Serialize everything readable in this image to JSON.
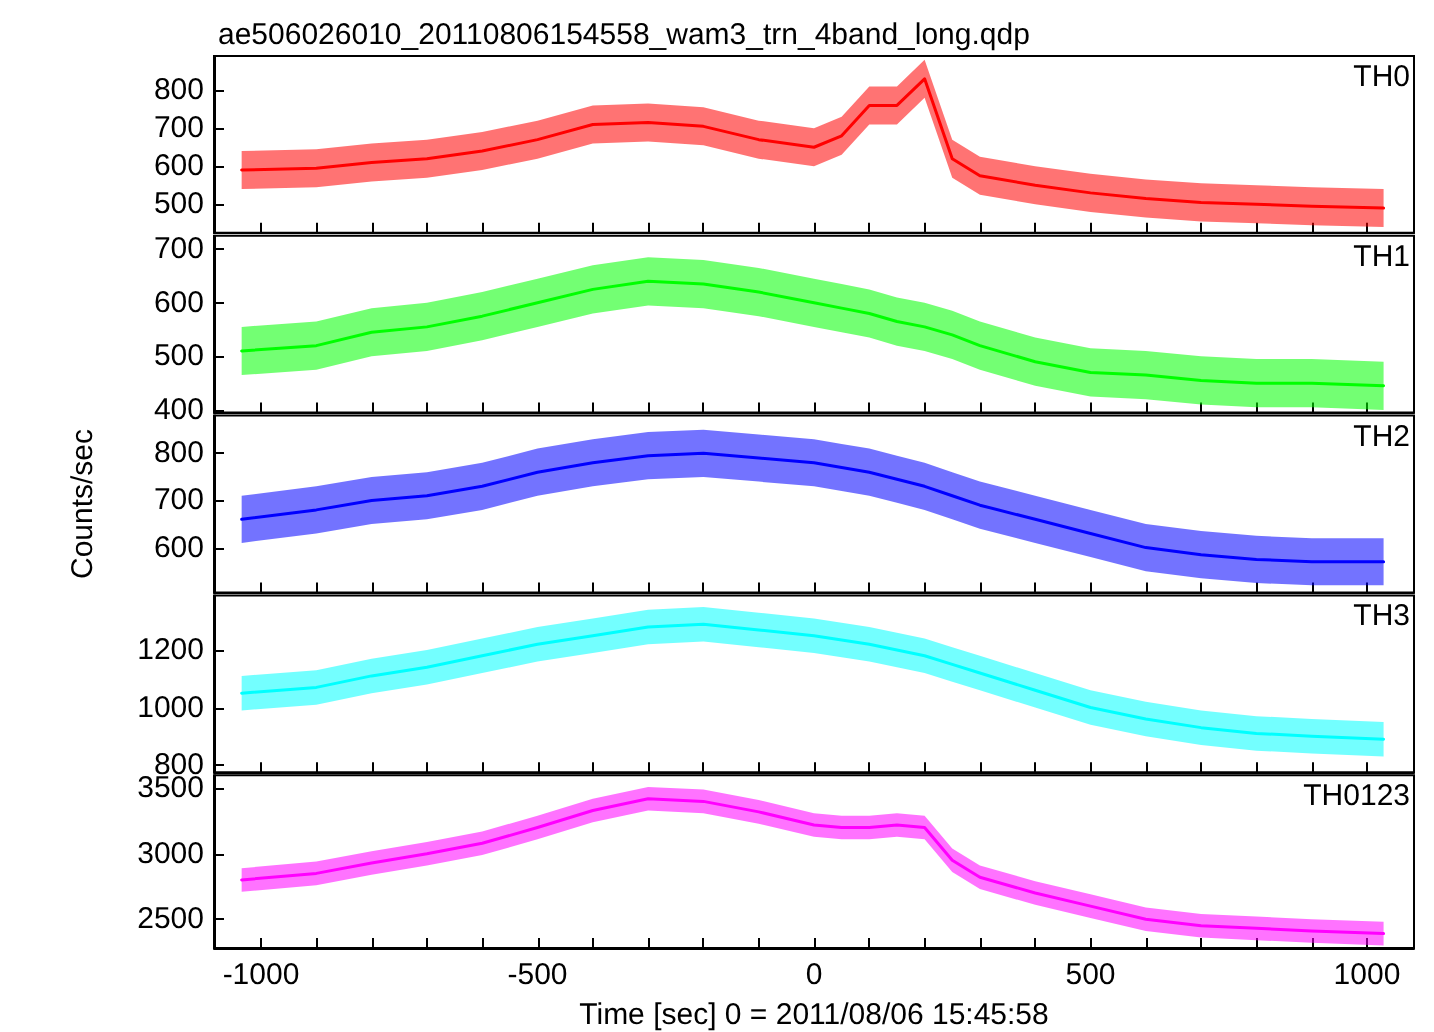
{
  "chart_data": [
    {
      "type": "line",
      "title": "ae506026010_20110806154558_wam3_trn_4band_long.qdp",
      "annotations": [
        "TH0"
      ],
      "tick_labels": "y",
      "x": [
        -1035,
        -900,
        -800,
        -700,
        -600,
        -500,
        -400,
        -300,
        -200,
        -100,
        0,
        50,
        100,
        150,
        200,
        250,
        300,
        400,
        500,
        600,
        700,
        800,
        900,
        1030
      ],
      "series": [
        {
          "color": "#ff0000",
          "values": [
            590,
            595,
            610,
            620,
            640,
            670,
            710,
            715,
            705,
            670,
            650,
            680,
            760,
            760,
            830,
            620,
            575,
            550,
            530,
            515,
            505,
            500,
            495,
            490
          ],
          "lower": [
            540,
            545,
            560,
            570,
            590,
            620,
            660,
            665,
            655,
            620,
            600,
            630,
            710,
            710,
            780,
            570,
            525,
            500,
            480,
            465,
            455,
            450,
            445,
            440
          ],
          "upper": [
            640,
            645,
            660,
            670,
            690,
            720,
            760,
            765,
            755,
            720,
            700,
            730,
            810,
            810,
            880,
            670,
            625,
            600,
            580,
            565,
            555,
            550,
            545,
            540
          ]
        }
      ],
      "xlim": [
        -1085,
        1085
      ],
      "ylim": [
        425,
        890
      ],
      "yticks": [
        500,
        600,
        700,
        800
      ],
      "xticks": [
        {
          "value": -1000,
          "label": null
        },
        {
          "value": -900,
          "label": null
        },
        {
          "value": -800,
          "label": null
        },
        {
          "value": -700,
          "label": null
        },
        {
          "value": -600,
          "label": null
        },
        {
          "value": -500,
          "label": null
        },
        {
          "value": -400,
          "label": null
        },
        {
          "value": -300,
          "label": null
        },
        {
          "value": -200,
          "label": null
        },
        {
          "value": -100,
          "label": null
        },
        {
          "value": 0,
          "label": null
        },
        {
          "value": 100,
          "label": null
        },
        {
          "value": 200,
          "label": null
        },
        {
          "value": 300,
          "label": null
        },
        {
          "value": 400,
          "label": null
        },
        {
          "value": 500,
          "label": null
        },
        {
          "value": 600,
          "label": null
        },
        {
          "value": 700,
          "label": null
        },
        {
          "value": 800,
          "label": null
        },
        {
          "value": 900,
          "label": null
        },
        {
          "value": 1000,
          "label": null
        }
      ]
    },
    {
      "type": "line",
      "annotations": [
        "TH1"
      ],
      "tick_labels": "y",
      "x": [
        -1035,
        -900,
        -800,
        -700,
        -600,
        -500,
        -400,
        -300,
        -200,
        -100,
        0,
        50,
        100,
        150,
        200,
        250,
        300,
        400,
        500,
        600,
        700,
        800,
        900,
        1030
      ],
      "series": [
        {
          "color": "#00ff00",
          "values": [
            510,
            520,
            545,
            555,
            575,
            600,
            625,
            640,
            635,
            620,
            600,
            590,
            580,
            565,
            555,
            540,
            520,
            490,
            470,
            465,
            455,
            450,
            450,
            445
          ],
          "lower": [
            465,
            475,
            500,
            510,
            530,
            555,
            580,
            595,
            590,
            575,
            555,
            545,
            535,
            520,
            510,
            495,
            475,
            445,
            425,
            420,
            410,
            405,
            405,
            400
          ],
          "upper": [
            555,
            565,
            590,
            600,
            620,
            645,
            670,
            685,
            680,
            665,
            645,
            635,
            625,
            610,
            600,
            585,
            565,
            535,
            515,
            510,
            500,
            495,
            495,
            490
          ]
        }
      ],
      "xlim": [
        -1085,
        1085
      ],
      "ylim": [
        395,
        725
      ],
      "yticks": [
        400,
        500,
        600,
        700
      ],
      "xticks": [
        {
          "value": -1000,
          "label": null
        },
        {
          "value": -900,
          "label": null
        },
        {
          "value": -800,
          "label": null
        },
        {
          "value": -700,
          "label": null
        },
        {
          "value": -600,
          "label": null
        },
        {
          "value": -500,
          "label": null
        },
        {
          "value": -400,
          "label": null
        },
        {
          "value": -300,
          "label": null
        },
        {
          "value": -200,
          "label": null
        },
        {
          "value": -100,
          "label": null
        },
        {
          "value": 0,
          "label": null
        },
        {
          "value": 100,
          "label": null
        },
        {
          "value": 200,
          "label": null
        },
        {
          "value": 300,
          "label": null
        },
        {
          "value": 400,
          "label": null
        },
        {
          "value": 500,
          "label": null
        },
        {
          "value": 600,
          "label": null
        },
        {
          "value": 700,
          "label": null
        },
        {
          "value": 800,
          "label": null
        },
        {
          "value": 900,
          "label": null
        },
        {
          "value": 1000,
          "label": null
        }
      ]
    },
    {
      "type": "line",
      "annotations": [
        "TH2"
      ],
      "tick_labels": "y",
      "ylabel": "Counts/sec",
      "x": [
        -1035,
        -900,
        -800,
        -700,
        -600,
        -500,
        -400,
        -300,
        -200,
        -100,
        0,
        50,
        100,
        150,
        200,
        250,
        300,
        400,
        500,
        600,
        700,
        800,
        900,
        1030
      ],
      "series": [
        {
          "color": "#0000ff",
          "values": [
            660,
            680,
            700,
            710,
            730,
            760,
            780,
            795,
            800,
            790,
            780,
            770,
            760,
            745,
            730,
            710,
            690,
            660,
            630,
            600,
            585,
            575,
            570,
            570
          ],
          "lower": [
            610,
            630,
            650,
            660,
            680,
            710,
            730,
            745,
            750,
            740,
            730,
            720,
            710,
            695,
            680,
            660,
            640,
            610,
            580,
            550,
            535,
            525,
            520,
            520
          ],
          "upper": [
            710,
            730,
            750,
            760,
            780,
            810,
            830,
            845,
            850,
            840,
            830,
            820,
            810,
            795,
            780,
            760,
            740,
            710,
            680,
            650,
            635,
            625,
            620,
            620
          ]
        }
      ],
      "xlim": [
        -1085,
        1085
      ],
      "ylim": [
        505,
        880
      ],
      "yticks": [
        600,
        700,
        800
      ],
      "xticks": [
        {
          "value": -1000,
          "label": null
        },
        {
          "value": -900,
          "label": null
        },
        {
          "value": -800,
          "label": null
        },
        {
          "value": -700,
          "label": null
        },
        {
          "value": -600,
          "label": null
        },
        {
          "value": -500,
          "label": null
        },
        {
          "value": -400,
          "label": null
        },
        {
          "value": -300,
          "label": null
        },
        {
          "value": -200,
          "label": null
        },
        {
          "value": -100,
          "label": null
        },
        {
          "value": 0,
          "label": null
        },
        {
          "value": 100,
          "label": null
        },
        {
          "value": 200,
          "label": null
        },
        {
          "value": 300,
          "label": null
        },
        {
          "value": 400,
          "label": null
        },
        {
          "value": 500,
          "label": null
        },
        {
          "value": 600,
          "label": null
        },
        {
          "value": 700,
          "label": null
        },
        {
          "value": 800,
          "label": null
        },
        {
          "value": 900,
          "label": null
        },
        {
          "value": 1000,
          "label": null
        }
      ]
    },
    {
      "type": "line",
      "annotations": [
        "TH3"
      ],
      "tick_labels": "y",
      "x": [
        -1035,
        -900,
        -800,
        -700,
        -600,
        -500,
        -400,
        -300,
        -200,
        -100,
        0,
        50,
        100,
        150,
        200,
        250,
        300,
        400,
        500,
        600,
        700,
        800,
        900,
        1030
      ],
      "series": [
        {
          "color": "#00ffff",
          "values": [
            1050,
            1070,
            1110,
            1140,
            1180,
            1220,
            1250,
            1280,
            1290,
            1270,
            1250,
            1235,
            1220,
            1200,
            1180,
            1150,
            1120,
            1060,
            1000,
            960,
            930,
            910,
            900,
            890
          ],
          "lower": [
            990,
            1010,
            1050,
            1080,
            1120,
            1160,
            1190,
            1220,
            1230,
            1210,
            1190,
            1175,
            1160,
            1140,
            1120,
            1090,
            1060,
            1000,
            940,
            900,
            870,
            850,
            840,
            830
          ],
          "upper": [
            1110,
            1130,
            1170,
            1200,
            1240,
            1280,
            1310,
            1340,
            1350,
            1330,
            1310,
            1295,
            1280,
            1260,
            1240,
            1210,
            1180,
            1120,
            1060,
            1020,
            990,
            970,
            960,
            950
          ]
        }
      ],
      "xlim": [
        -1085,
        1085
      ],
      "ylim": [
        775,
        1390
      ],
      "yticks": [
        800,
        1000,
        1200
      ],
      "xticks": [
        {
          "value": -1000,
          "label": null
        },
        {
          "value": -900,
          "label": null
        },
        {
          "value": -800,
          "label": null
        },
        {
          "value": -700,
          "label": null
        },
        {
          "value": -600,
          "label": null
        },
        {
          "value": -500,
          "label": null
        },
        {
          "value": -400,
          "label": null
        },
        {
          "value": -300,
          "label": null
        },
        {
          "value": -200,
          "label": null
        },
        {
          "value": -100,
          "label": null
        },
        {
          "value": 0,
          "label": null
        },
        {
          "value": 100,
          "label": null
        },
        {
          "value": 200,
          "label": null
        },
        {
          "value": 300,
          "label": null
        },
        {
          "value": 400,
          "label": null
        },
        {
          "value": 500,
          "label": null
        },
        {
          "value": 600,
          "label": null
        },
        {
          "value": 700,
          "label": null
        },
        {
          "value": 800,
          "label": null
        },
        {
          "value": 900,
          "label": null
        },
        {
          "value": 1000,
          "label": null
        }
      ]
    },
    {
      "type": "line",
      "annotations": [
        "TH0123"
      ],
      "xlabel": "Time [sec] 0 = 2011/08/06 15:45:58",
      "x": [
        -1035,
        -900,
        -800,
        -700,
        -600,
        -500,
        -400,
        -300,
        -200,
        -100,
        0,
        50,
        100,
        150,
        200,
        250,
        300,
        400,
        500,
        600,
        700,
        800,
        900,
        1030
      ],
      "series": [
        {
          "color": "#ff00ff",
          "values": [
            2800,
            2850,
            2930,
            3000,
            3080,
            3200,
            3330,
            3420,
            3400,
            3320,
            3220,
            3200,
            3200,
            3220,
            3200,
            2950,
            2820,
            2700,
            2600,
            2500,
            2450,
            2430,
            2410,
            2390
          ],
          "lower": [
            2710,
            2760,
            2840,
            2910,
            2990,
            3110,
            3240,
            3330,
            3310,
            3230,
            3130,
            3110,
            3110,
            3130,
            3110,
            2860,
            2730,
            2610,
            2510,
            2410,
            2360,
            2340,
            2320,
            2300
          ],
          "upper": [
            2890,
            2940,
            3020,
            3090,
            3170,
            3290,
            3420,
            3510,
            3490,
            3410,
            3310,
            3290,
            3290,
            3310,
            3290,
            3040,
            2910,
            2790,
            2690,
            2590,
            2540,
            2520,
            2500,
            2480
          ]
        }
      ],
      "xlim": [
        -1085,
        1085
      ],
      "ylim": [
        2280,
        3600
      ],
      "yticks": [
        2500,
        3000,
        3500
      ],
      "xticks": [
        -1000,
        {
          "value": -900,
          "label": null
        },
        {
          "value": -800,
          "label": null
        },
        {
          "value": -700,
          "label": null
        },
        {
          "value": -600,
          "label": null
        },
        -500,
        {
          "value": -400,
          "label": null
        },
        {
          "value": -300,
          "label": null
        },
        {
          "value": -200,
          "label": null
        },
        {
          "value": -100,
          "label": null
        },
        0,
        {
          "value": 100,
          "label": null
        },
        {
          "value": 200,
          "label": null
        },
        {
          "value": 300,
          "label": null
        },
        {
          "value": 400,
          "label": null
        },
        500,
        {
          "value": 600,
          "label": null
        },
        {
          "value": 700,
          "label": null
        },
        {
          "value": 800,
          "label": null
        },
        {
          "value": 900,
          "label": null
        },
        1000
      ]
    }
  ]
}
